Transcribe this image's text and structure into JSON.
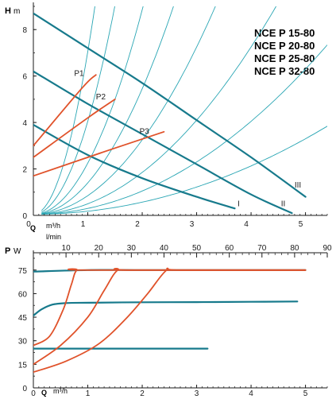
{
  "colors": {
    "system_curve": "#2aa6b4",
    "pump_curve": "#177a8c",
    "operating_curve": "#e0522a",
    "axis": "#1a1a1a",
    "text": "#1a1a1a"
  },
  "chart_data": [
    {
      "type": "line",
      "title_lines": [
        "NCE P 15-80",
        "NCE P 20-80",
        "NCE P 25-80",
        "NCE P 32-80"
      ],
      "ylabel_symbol": "H",
      "ylabel_unit": "m",
      "xlabel_symbol": "Q",
      "xlabel_unit": "m³/h",
      "x2label_unit": "l/min",
      "xlim": [
        0,
        5.4
      ],
      "ylim": [
        0,
        9
      ],
      "x_ticks": [
        0,
        1,
        2,
        3,
        4,
        5
      ],
      "y_ticks": [
        0,
        2,
        4,
        6,
        8
      ],
      "x2_ticks": [
        0,
        10,
        20,
        30,
        40,
        50,
        60,
        70,
        80,
        90
      ],
      "grid": false,
      "series": [
        {
          "name": "III",
          "role": "pump",
          "x": [
            0,
            1,
            2,
            3,
            4,
            5
          ],
          "y": [
            8.7,
            7.2,
            5.7,
            4.1,
            2.5,
            0.8
          ]
        },
        {
          "name": "II",
          "role": "pump",
          "x": [
            0,
            1,
            2,
            3,
            4,
            4.75
          ],
          "y": [
            6.2,
            4.8,
            3.5,
            2.2,
            0.9,
            0.1
          ]
        },
        {
          "name": "I",
          "role": "pump",
          "x": [
            0,
            1,
            2,
            3,
            3.7
          ],
          "y": [
            3.9,
            2.6,
            1.6,
            0.8,
            0.3
          ]
        },
        {
          "name": "P1",
          "role": "operating",
          "x": [
            0,
            0.9,
            1.15
          ],
          "y": [
            3.0,
            5.5,
            6.05
          ]
        },
        {
          "name": "P2",
          "role": "operating",
          "x": [
            0,
            1.0,
            1.5
          ],
          "y": [
            2.5,
            4.2,
            5.0
          ]
        },
        {
          "name": "P3",
          "role": "operating",
          "x": [
            0,
            1.5,
            2.4
          ],
          "y": [
            1.7,
            2.9,
            3.6
          ]
        }
      ],
      "system_curves_k": [
        7.0,
        4.0,
        2.2,
        1.35,
        0.8,
        0.45,
        0.25,
        0.13
      ],
      "annotations": [
        {
          "text": "P1",
          "x": 0.75,
          "y": 6.0
        },
        {
          "text": "P2",
          "x": 1.15,
          "y": 5.0
        },
        {
          "text": "P3",
          "x": 1.95,
          "y": 3.5
        },
        {
          "text": "I",
          "x": 3.75,
          "y": 0.4
        },
        {
          "text": "II",
          "x": 4.55,
          "y": 0.4
        },
        {
          "text": "III",
          "x": 4.8,
          "y": 1.2
        }
      ]
    },
    {
      "type": "line",
      "ylabel_symbol": "P",
      "ylabel_unit": "W",
      "xlabel_symbol": "Q",
      "xlabel_unit": "m³/h",
      "xlim": [
        0,
        5.4
      ],
      "ylim": [
        0,
        85
      ],
      "x_ticks": [
        0,
        1,
        2,
        3,
        4,
        5
      ],
      "y_ticks": [
        0,
        15,
        30,
        45,
        60,
        75
      ],
      "grid": false,
      "series": [
        {
          "name": "III",
          "role": "pump",
          "x": [
            0,
            1,
            2,
            3,
            4,
            5
          ],
          "y": [
            74,
            75,
            75,
            75,
            75,
            75
          ]
        },
        {
          "name": "II",
          "role": "pump",
          "x": [
            0,
            0.15,
            0.35,
            0.6,
            1,
            2,
            3,
            4,
            4.85
          ],
          "y": [
            46,
            50,
            53,
            54,
            54.2,
            54.5,
            54.6,
            54.8,
            55
          ]
        },
        {
          "name": "I",
          "role": "pump",
          "x": [
            0,
            3.2
          ],
          "y": [
            25,
            25
          ]
        },
        {
          "name": "P1",
          "role": "operating",
          "x": [
            0,
            0.3,
            0.55,
            0.7,
            0.8,
            1.0,
            5
          ],
          "y": [
            27,
            33,
            50,
            66,
            75,
            75,
            75
          ]
        },
        {
          "name": "P2",
          "role": "operating",
          "x": [
            0,
            0.5,
            1.0,
            1.3,
            1.55,
            1.8,
            5
          ],
          "y": [
            15,
            27,
            45,
            62,
            75,
            75,
            75
          ]
        },
        {
          "name": "P3",
          "role": "operating",
          "x": [
            0,
            0.6,
            1.2,
            1.7,
            2.1,
            2.45,
            2.7,
            5
          ],
          "y": [
            10,
            17,
            28,
            44,
            60,
            75,
            75,
            75
          ]
        }
      ]
    }
  ]
}
